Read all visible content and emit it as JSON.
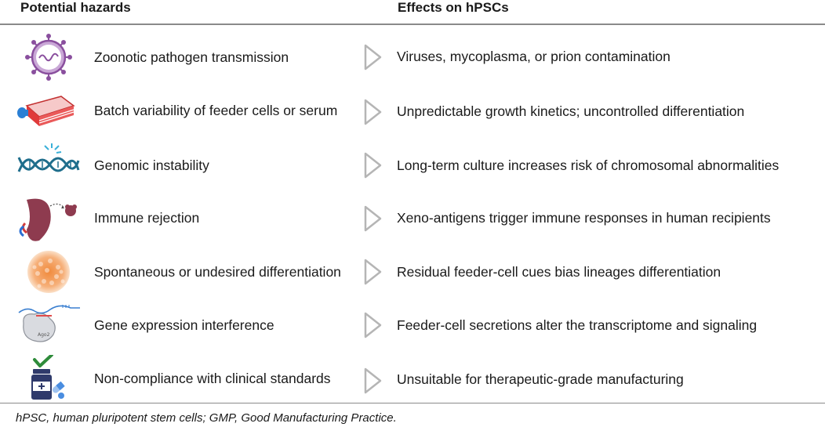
{
  "headers": {
    "hazards": "Potential hazards",
    "effects": "Effects on hPSCs"
  },
  "rows": [
    {
      "icon": "virus-icon",
      "hazard": "Zoonotic pathogen transmission",
      "effect": "Viruses, mycoplasma, or prion contamination"
    },
    {
      "icon": "culture-flask-icon",
      "hazard": "Batch variability of feeder cells or serum",
      "effect": "Unpredictable growth kinetics; uncontrolled differentiation"
    },
    {
      "icon": "dna-icon",
      "hazard": "Genomic instability",
      "effect": "Long-term culture increases risk of chromosomal abnormalities"
    },
    {
      "icon": "organ-rejection-icon",
      "hazard": "Immune rejection",
      "effect": "Xeno-antigens trigger immune responses in human recipients"
    },
    {
      "icon": "cell-colony-icon",
      "hazard": "Spontaneous or undesired differentiation",
      "effect": "Residual feeder-cell cues bias lineages differentiation"
    },
    {
      "icon": "gene-silencing-icon",
      "hazard": "Gene expression interference",
      "effect": "Feeder-cell secretions alter the transcriptome and signaling",
      "icon_text": "Ago2"
    },
    {
      "icon": "medicine-check-icon",
      "hazard": "Non-compliance with clinical standards",
      "effect": "Unsuitable for therapeutic-grade manufacturing"
    }
  ],
  "footnote": "hPSC, human pluripotent stem cells; GMP, Good Manufacturing Practice.",
  "colors": {
    "rule": "#8a8a8a",
    "arrow": "#b5b5b5",
    "virus": "#8a4f9e",
    "flask": "#e03a3a",
    "dna": "#1f6e8c",
    "organ": "#8e3b4f",
    "colony": "#f4a460",
    "check": "#2e8b3a",
    "bottle": "#2f3a6b"
  }
}
